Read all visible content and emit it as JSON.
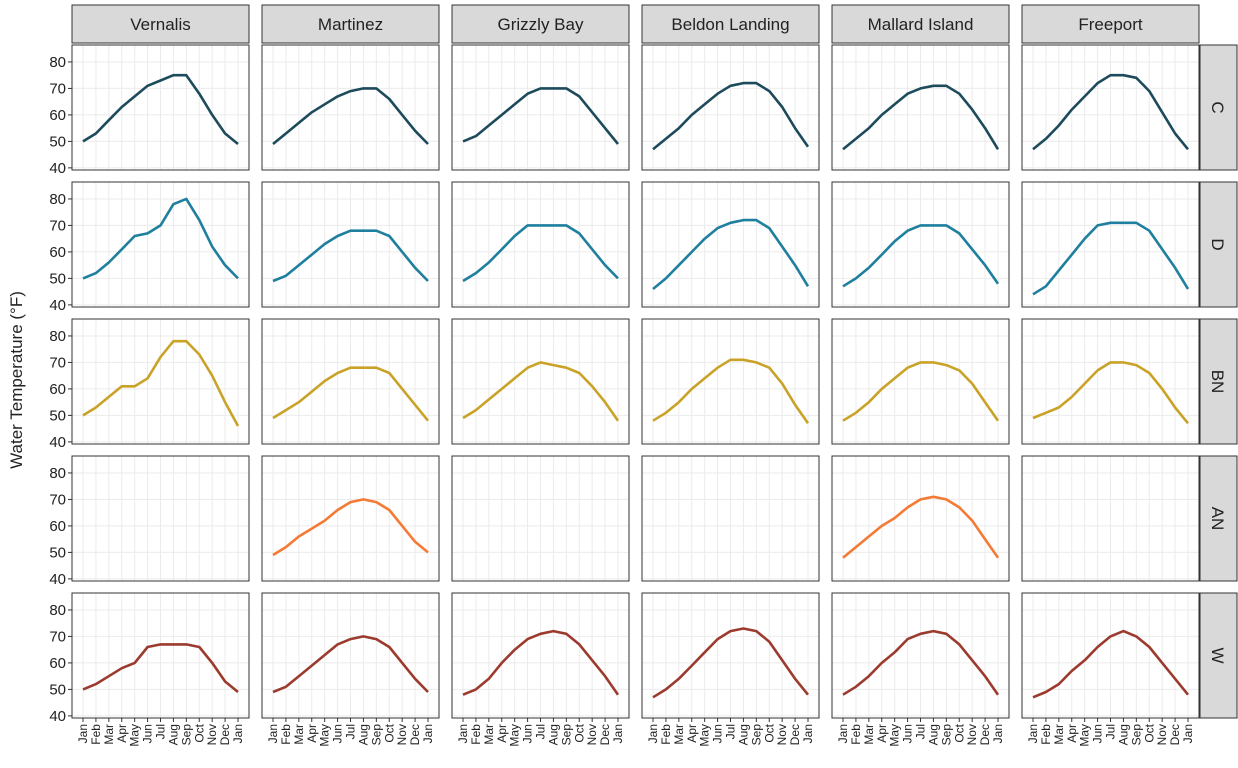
{
  "chart_data": {
    "type": "line",
    "y_label": "Water Temperature (°F)",
    "categories": [
      "Jan",
      "Feb",
      "Mar",
      "Apr",
      "May",
      "Jun",
      "Jul",
      "Aug",
      "Sep",
      "Oct",
      "Nov",
      "Dec",
      "Jan"
    ],
    "columns": [
      "Vernalis",
      "Martinez",
      "Grizzly Bay",
      "Beldon Landing",
      "Mallard Island",
      "Freeport"
    ],
    "ylim": [
      39.2,
      86.4
    ],
    "yticks": [
      40,
      50,
      60,
      70,
      80
    ],
    "grid": true,
    "rows": [
      {
        "name": "C",
        "color": "#1d4b5c",
        "panels": [
          [
            50,
            53,
            58,
            63,
            67,
            71,
            73,
            75,
            75,
            68,
            60,
            53,
            49
          ],
          [
            49,
            53,
            57,
            61,
            64,
            67,
            69,
            70,
            70,
            66,
            60,
            54,
            49
          ],
          [
            50,
            52,
            56,
            60,
            64,
            68,
            70,
            70,
            70,
            67,
            61,
            55,
            49
          ],
          [
            47,
            51,
            55,
            60,
            64,
            68,
            71,
            72,
            72,
            69,
            63,
            55,
            48
          ],
          [
            47,
            51,
            55,
            60,
            64,
            68,
            70,
            71,
            71,
            68,
            62,
            55,
            47
          ],
          [
            47,
            51,
            56,
            62,
            67,
            72,
            75,
            75,
            74,
            69,
            61,
            53,
            47
          ]
        ]
      },
      {
        "name": "D",
        "color": "#1f7f9e",
        "panels": [
          [
            50,
            52,
            56,
            61,
            66,
            67,
            70,
            78,
            80,
            72,
            62,
            55,
            50
          ],
          [
            49,
            51,
            55,
            59,
            63,
            66,
            68,
            68,
            68,
            66,
            60,
            54,
            49
          ],
          [
            49,
            52,
            56,
            61,
            66,
            70,
            70,
            70,
            70,
            67,
            61,
            55,
            50
          ],
          [
            46,
            50,
            55,
            60,
            65,
            69,
            71,
            72,
            72,
            69,
            62,
            55,
            47
          ],
          [
            47,
            50,
            54,
            59,
            64,
            68,
            70,
            70,
            70,
            67,
            61,
            55,
            48
          ],
          [
            44,
            47,
            53,
            59,
            65,
            70,
            71,
            71,
            71,
            68,
            61,
            54,
            46
          ]
        ]
      },
      {
        "name": "BN",
        "color": "#c9a227",
        "panels": [
          [
            50,
            53,
            57,
            61,
            61,
            64,
            72,
            78,
            78,
            73,
            65,
            55,
            46
          ],
          [
            49,
            52,
            55,
            59,
            63,
            66,
            68,
            68,
            68,
            66,
            60,
            54,
            48
          ],
          [
            49,
            52,
            56,
            60,
            64,
            68,
            70,
            69,
            68,
            66,
            61,
            55,
            48
          ],
          [
            48,
            51,
            55,
            60,
            64,
            68,
            71,
            71,
            70,
            68,
            62,
            54,
            47
          ],
          [
            48,
            51,
            55,
            60,
            64,
            68,
            70,
            70,
            69,
            67,
            62,
            55,
            48
          ],
          [
            49,
            51,
            53,
            57,
            62,
            67,
            70,
            70,
            69,
            66,
            60,
            53,
            47
          ]
        ]
      },
      {
        "name": "AN",
        "color": "#f47a35",
        "panels": [
          null,
          [
            49,
            52,
            56,
            59,
            62,
            66,
            69,
            70,
            69,
            66,
            60,
            54,
            50
          ],
          null,
          null,
          [
            48,
            52,
            56,
            60,
            63,
            67,
            70,
            71,
            70,
            67,
            62,
            55,
            48
          ],
          null
        ]
      },
      {
        "name": "W",
        "color": "#9c3a2e",
        "panels": [
          [
            50,
            52,
            55,
            58,
            60,
            66,
            67,
            67,
            67,
            66,
            60,
            53,
            49
          ],
          [
            49,
            51,
            55,
            59,
            63,
            67,
            69,
            70,
            69,
            66,
            60,
            54,
            49
          ],
          [
            48,
            50,
            54,
            60,
            65,
            69,
            71,
            72,
            71,
            67,
            61,
            55,
            48
          ],
          [
            47,
            50,
            54,
            59,
            64,
            69,
            72,
            73,
            72,
            68,
            61,
            54,
            48
          ],
          [
            48,
            51,
            55,
            60,
            64,
            69,
            71,
            72,
            71,
            67,
            61,
            55,
            48
          ],
          [
            47,
            49,
            52,
            57,
            61,
            66,
            70,
            72,
            70,
            66,
            60,
            54,
            48
          ]
        ]
      }
    ]
  }
}
